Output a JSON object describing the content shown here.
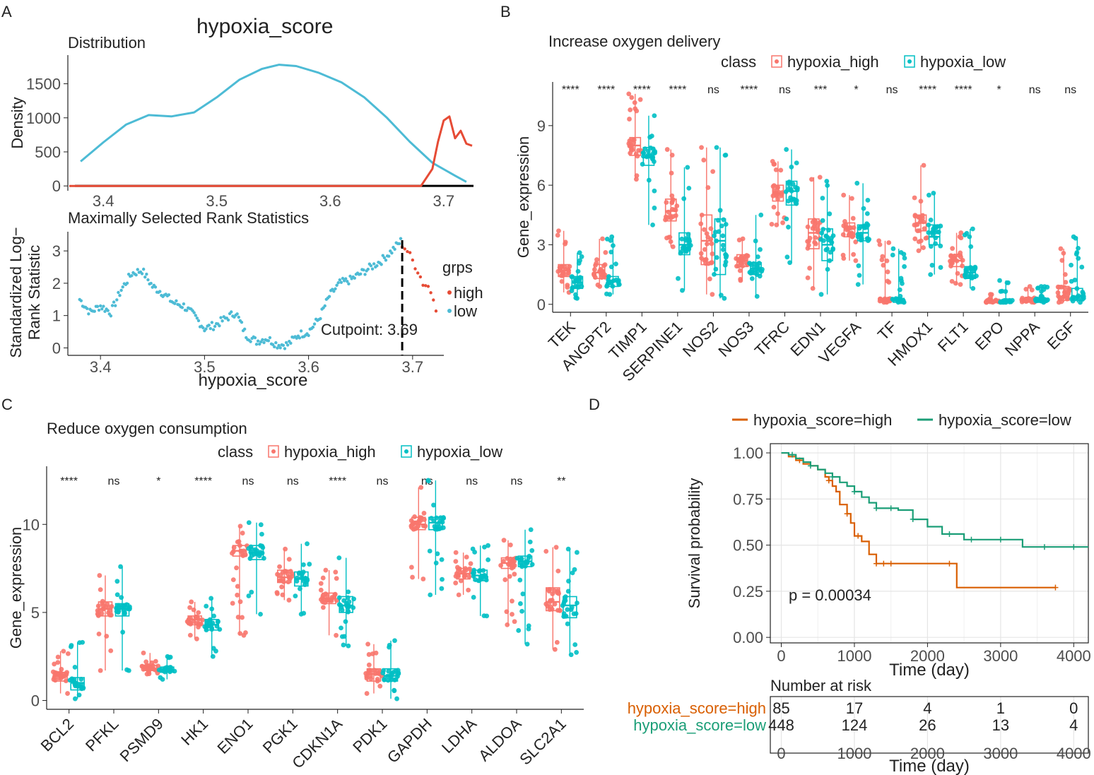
{
  "colors": {
    "high_red": "#f8766d",
    "low_teal": "#00bfc4",
    "dens_high": "#e64b35",
    "dens_low": "#4dbbd5",
    "km_high": "#d95f02",
    "km_low": "#1b9e77",
    "grid": "#e5e5e5",
    "ink": "#222222",
    "tick": "#4d4d4d"
  },
  "chart_data": [
    {
      "panel": "A",
      "panel_letter": "A",
      "title": "hypoxia_score",
      "subplots": [
        {
          "type": "line",
          "subtitle": "Distribution",
          "xlabel": "",
          "ylabel": "Density",
          "xlim": [
            3.37,
            3.73
          ],
          "ylim": [
            -50,
            1900
          ],
          "xticks": [
            3.4,
            3.5,
            3.6,
            3.7
          ],
          "yticks": [
            0,
            500,
            1000,
            1500
          ],
          "series": [
            {
              "name": "low",
              "x": [
                3.38,
                3.4,
                3.42,
                3.44,
                3.46,
                3.48,
                3.5,
                3.52,
                3.54,
                3.555,
                3.57,
                3.59,
                3.61,
                3.63,
                3.65,
                3.67,
                3.69,
                3.71,
                3.72
              ],
              "y": [
                360,
                640,
                900,
                1040,
                1020,
                1080,
                1300,
                1560,
                1720,
                1780,
                1760,
                1660,
                1520,
                1300,
                1000,
                650,
                340,
                150,
                60
              ]
            },
            {
              "name": "high",
              "x": [
                3.37,
                3.6,
                3.68,
                3.69,
                3.695,
                3.7,
                3.705,
                3.71,
                3.715,
                3.72,
                3.725
              ],
              "y": [
                0,
                0,
                0,
                250,
                650,
                960,
                1020,
                700,
                810,
                620,
                590
              ]
            }
          ]
        },
        {
          "type": "scatter",
          "subtitle": "Maximally Selected Rank Statistics",
          "xlabel": "hypoxia_score",
          "ylabel": "Standardized Log− Rank Statistic",
          "ylabel_lines": [
            "Standardized Log−",
            "Rank Statistic"
          ],
          "xlim": [
            3.37,
            3.73
          ],
          "ylim": [
            -0.1,
            3.55
          ],
          "xticks": [
            3.4,
            3.5,
            3.6,
            3.7
          ],
          "yticks": [
            0,
            1,
            2,
            3
          ],
          "cutpoint": 3.69,
          "cutpoint_label": "Cutpoint: 3.69",
          "legend_title": "grps",
          "legend": [
            "high",
            "low"
          ],
          "series": [
            {
              "name": "low",
              "x": [
                3.38,
                3.39,
                3.4,
                3.41,
                3.42,
                3.43,
                3.44,
                3.45,
                3.46,
                3.47,
                3.48,
                3.49,
                3.5,
                3.51,
                3.52,
                3.53,
                3.54,
                3.55,
                3.56,
                3.57,
                3.58,
                3.59,
                3.6,
                3.61,
                3.62,
                3.63,
                3.64,
                3.65,
                3.66,
                3.67,
                3.68,
                3.69
              ],
              "y": [
                1.5,
                1.1,
                1.3,
                1.1,
                1.8,
                2.3,
                2.4,
                1.9,
                1.7,
                1.4,
                1.3,
                1.0,
                0.6,
                0.7,
                0.9,
                1.1,
                0.4,
                0.2,
                0.3,
                0.1,
                0.1,
                0.4,
                0.5,
                0.9,
                1.6,
                2.0,
                2.1,
                2.3,
                2.5,
                2.7,
                3.0,
                3.35
              ]
            },
            {
              "name": "high",
              "x": [
                3.69,
                3.695,
                3.7,
                3.705,
                3.71,
                3.715,
                3.72,
                3.725
              ],
              "y": [
                3.2,
                3.0,
                2.7,
                2.4,
                2.0,
                1.9,
                1.6,
                0.9
              ]
            }
          ]
        }
      ]
    },
    {
      "panel": "B",
      "panel_letter": "B",
      "type": "box",
      "title": "Increase oxygen delivery",
      "legend_title": "class",
      "legend": [
        "hypoxia_high",
        "hypoxia_low"
      ],
      "ylabel": "Gene_expression",
      "ylim": [
        -0.4,
        11.2
      ],
      "yticks": [
        0,
        3,
        6,
        9
      ],
      "categories": [
        "TEK",
        "ANGPT2",
        "TIMP1",
        "SERPINE1",
        "NOS2",
        "NOS3",
        "TFRC",
        "EDN1",
        "VEGFA",
        "TF",
        "HMOX1",
        "FLT1",
        "EPO",
        "NPPA",
        "EGF"
      ],
      "significance": [
        "****",
        "****",
        "****",
        "****",
        "ns",
        "****",
        "ns",
        "***",
        "*",
        "ns",
        "****",
        "****",
        "*",
        "ns",
        "ns"
      ],
      "series": [
        {
          "name": "hypoxia_high",
          "boxes": [
            [
              0.6,
              1.4,
              1.7,
              2.0,
              3.7
            ],
            [
              0.9,
              1.3,
              1.6,
              2.0,
              3.3
            ],
            [
              6.3,
              7.5,
              8.0,
              8.4,
              10.6
            ],
            [
              2.9,
              4.2,
              4.7,
              5.3,
              7.8
            ],
            [
              0.5,
              2.0,
              3.2,
              4.5,
              7.9
            ],
            [
              1.2,
              1.9,
              2.2,
              2.5,
              3.3
            ],
            [
              4.0,
              5.2,
              5.6,
              6.0,
              7.2
            ],
            [
              0.8,
              2.8,
              3.6,
              4.3,
              6.4
            ],
            [
              2.2,
              3.4,
              3.8,
              4.1,
              5.5
            ],
            [
              0.1,
              0.1,
              0.2,
              0.3,
              3.2
            ],
            [
              2.7,
              3.7,
              4.1,
              4.5,
              7.0
            ],
            [
              1.0,
              1.9,
              2.2,
              2.5,
              3.6
            ],
            [
              0.1,
              0.1,
              0.1,
              0.2,
              0.5
            ],
            [
              0.1,
              0.1,
              0.2,
              0.3,
              0.9
            ],
            [
              0.1,
              0.2,
              0.4,
              0.9,
              2.8
            ]
          ]
        },
        {
          "name": "hypoxia_low",
          "boxes": [
            [
              0.3,
              0.8,
              1.1,
              1.4,
              2.6
            ],
            [
              0.5,
              0.9,
              1.2,
              1.4,
              3.4
            ],
            [
              4.0,
              7.0,
              7.4,
              7.9,
              9.5
            ],
            [
              0.7,
              2.5,
              3.0,
              3.6,
              6.9
            ],
            [
              0.3,
              1.5,
              3.2,
              4.3,
              7.9
            ],
            [
              0.4,
              1.5,
              1.8,
              2.1,
              4.5
            ],
            [
              2.1,
              5.0,
              5.7,
              6.2,
              7.8
            ],
            [
              0.5,
              2.2,
              3.0,
              3.8,
              6.2
            ],
            [
              1.0,
              3.2,
              3.6,
              4.0,
              6.1
            ],
            [
              0.1,
              0.1,
              0.2,
              0.3,
              2.8
            ],
            [
              1.5,
              3.0,
              3.4,
              4.0,
              5.6
            ],
            [
              0.8,
              1.3,
              1.6,
              1.9,
              3.8
            ],
            [
              0.1,
              0.1,
              0.1,
              0.2,
              1.2
            ],
            [
              0.1,
              0.1,
              0.2,
              0.3,
              0.9
            ],
            [
              0.1,
              0.2,
              0.4,
              0.8,
              3.4
            ]
          ]
        }
      ]
    },
    {
      "panel": "C",
      "panel_letter": "C",
      "type": "box",
      "title": "Reduce oxygen consumption",
      "legend_title": "class",
      "legend": [
        "hypoxia_high",
        "hypoxia_low"
      ],
      "ylabel": "Gene_expression",
      "ylim": [
        -0.5,
        13.3
      ],
      "yticks": [
        0,
        5,
        10
      ],
      "categories": [
        "BCL2",
        "PFKL",
        "PSMD9",
        "HK1",
        "ENO1",
        "PGK1",
        "CDKN1A",
        "PDK1",
        "GAPDH",
        "LDHA",
        "ALDOA",
        "SLC2A1"
      ],
      "significance": [
        "****",
        "ns",
        "*",
        "****",
        "ns",
        "ns",
        "****",
        "ns",
        "ns",
        "ns",
        "ns",
        "**"
      ],
      "series": [
        {
          "name": "hypoxia_high",
          "boxes": [
            [
              0.4,
              1.1,
              1.4,
              1.6,
              2.8
            ],
            [
              1.7,
              4.8,
              5.2,
              5.6,
              7.1
            ],
            [
              1.5,
              1.7,
              1.8,
              2.0,
              2.7
            ],
            [
              3.5,
              4.3,
              4.6,
              4.8,
              5.6
            ],
            [
              3.7,
              8.2,
              8.5,
              8.8,
              9.9
            ],
            [
              5.7,
              6.7,
              7.0,
              7.4,
              8.6
            ],
            [
              3.7,
              5.5,
              5.8,
              6.1,
              7.4
            ],
            [
              0.4,
              1.1,
              1.5,
              1.8,
              3.2
            ],
            [
              6.9,
              9.7,
              10.0,
              10.4,
              12.1
            ],
            [
              6.0,
              6.9,
              7.2,
              7.5,
              8.4
            ],
            [
              4.3,
              7.5,
              7.8,
              8.1,
              9.1
            ],
            [
              2.9,
              5.1,
              5.6,
              6.4,
              8.7
            ]
          ]
        },
        {
          "name": "hypoxia_low",
          "boxes": [
            [
              0.1,
              0.6,
              1.0,
              1.3,
              3.3
            ],
            [
              1.7,
              4.8,
              5.2,
              5.5,
              7.6
            ],
            [
              1.2,
              1.6,
              1.7,
              1.9,
              2.5
            ],
            [
              2.5,
              4.0,
              4.3,
              4.6,
              5.8
            ],
            [
              4.9,
              8.0,
              8.4,
              8.8,
              10.1
            ],
            [
              4.9,
              6.5,
              6.9,
              7.3,
              8.9
            ],
            [
              3.1,
              5.0,
              5.4,
              5.9,
              8.1
            ],
            [
              0.1,
              1.1,
              1.4,
              1.8,
              3.4
            ],
            [
              6.0,
              9.7,
              10.1,
              10.4,
              12.5
            ],
            [
              4.8,
              6.8,
              7.1,
              7.4,
              8.8
            ],
            [
              3.2,
              7.6,
              7.9,
              8.2,
              9.7
            ],
            [
              2.6,
              4.7,
              5.4,
              5.9,
              8.6
            ]
          ]
        }
      ]
    },
    {
      "panel": "D",
      "panel_letter": "D",
      "type": "line",
      "subtype": "kaplan-meier",
      "legend": [
        "hypoxia_score=high",
        "hypoxia_score=low"
      ],
      "ylabel": "Survival probability",
      "xlabel": "Time (day)",
      "xlim": [
        -150,
        4200
      ],
      "ylim": [
        -0.03,
        1.05
      ],
      "xticks": [
        0,
        1000,
        2000,
        3000,
        4000
      ],
      "yticks": [
        "0.00",
        "0.25",
        "0.50",
        "0.75",
        "1.00"
      ],
      "ytick_values": [
        0,
        0.25,
        0.5,
        0.75,
        1.0
      ],
      "pvalue_label": "p = 0.00034",
      "series": [
        {
          "name": "hypoxia_score=high",
          "x": [
            0,
            100,
            200,
            300,
            400,
            500,
            600,
            650,
            700,
            750,
            800,
            900,
            950,
            1000,
            1100,
            1200,
            1300,
            1500,
            2400,
            3750
          ],
          "y": [
            1.0,
            0.98,
            0.96,
            0.94,
            0.93,
            0.91,
            0.87,
            0.85,
            0.82,
            0.79,
            0.72,
            0.67,
            0.62,
            0.55,
            0.52,
            0.45,
            0.4,
            0.4,
            0.27,
            0.27
          ],
          "censor_x": [
            250,
            650,
            900,
            1050,
            1300,
            1400,
            1500,
            2300,
            3750
          ]
        },
        {
          "name": "hypoxia_score=low",
          "x": [
            0,
            100,
            200,
            300,
            400,
            500,
            600,
            700,
            800,
            900,
            1000,
            1100,
            1200,
            1300,
            1600,
            1800,
            2000,
            2200,
            2500,
            3000,
            3300,
            4200
          ],
          "y": [
            1.0,
            0.99,
            0.97,
            0.95,
            0.93,
            0.91,
            0.89,
            0.87,
            0.84,
            0.82,
            0.79,
            0.76,
            0.73,
            0.7,
            0.69,
            0.64,
            0.6,
            0.56,
            0.53,
            0.53,
            0.49,
            0.49
          ],
          "censor_x": [
            150,
            400,
            700,
            1000,
            1300,
            1500,
            1800,
            2300,
            2600,
            3000,
            3600,
            4000
          ]
        }
      ],
      "risk_table": {
        "title": "Number at risk",
        "xlabel": "Time (day)",
        "xticks": [
          0,
          1000,
          2000,
          3000,
          4000
        ],
        "rows": [
          {
            "label": "hypoxia_score=high",
            "values": [
              85,
              17,
              4,
              1,
              0
            ]
          },
          {
            "label": "hypoxia_score=low",
            "values": [
              448,
              124,
              26,
              13,
              4
            ]
          }
        ]
      }
    }
  ]
}
